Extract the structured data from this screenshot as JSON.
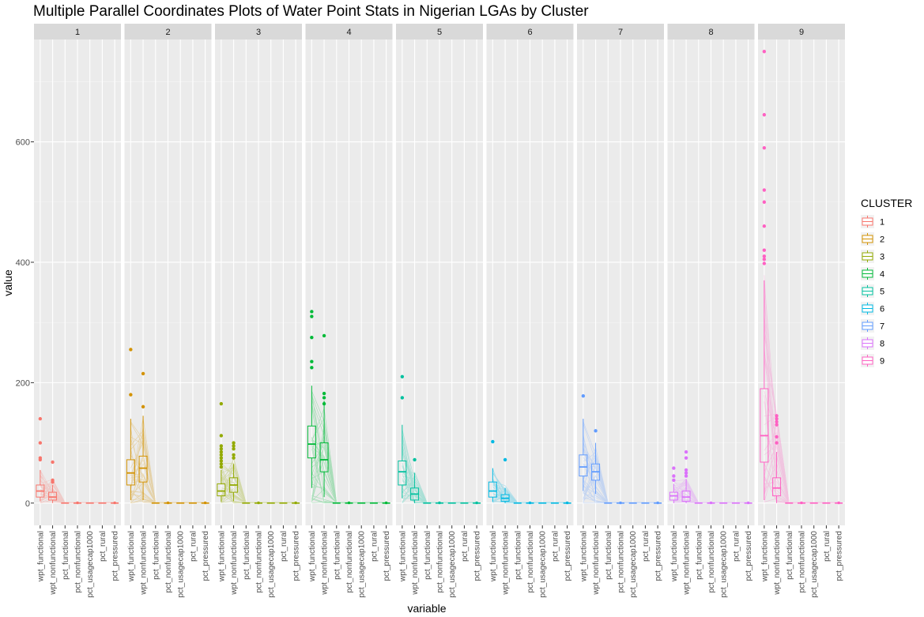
{
  "chart_data": {
    "type": "parallel-coordinates-boxplot",
    "title": "Multiple Parallel Coordinates Plots of Water Point Stats in Nigerian LGAs by Cluster",
    "xlabel": "variable",
    "ylabel": "value",
    "ylim": [
      -37,
      770
    ],
    "yticks": [
      0,
      200,
      400,
      600
    ],
    "grid": true,
    "legend_position": "right",
    "legend_title": "CLUSTER",
    "variables": [
      "wpt_functional",
      "wpt_nonfunctional",
      "pct_functional",
      "pct_nonfunctional",
      "pct_usagecap1000",
      "pct_rural",
      "pct_pressured"
    ],
    "clusters": [
      {
        "name": "1",
        "color": "#F8766D",
        "boxes": [
          {
            "q1": 10,
            "median": 20,
            "q3": 30,
            "lo": 3,
            "hi": 55
          },
          {
            "q1": 5,
            "median": 10,
            "q3": 18,
            "lo": 0,
            "hi": 30
          }
        ],
        "outliers": [
          [
            140,
            100,
            75,
            72
          ],
          [
            68,
            38,
            35
          ]
        ],
        "line_max": [
          55,
          40
        ]
      },
      {
        "name": "2",
        "color": "#D39200",
        "boxes": [
          {
            "q1": 30,
            "median": 50,
            "q3": 72,
            "lo": 5,
            "hi": 140
          },
          {
            "q1": 35,
            "median": 58,
            "q3": 78,
            "lo": 5,
            "hi": 145
          }
        ],
        "outliers": [
          [
            255,
            180
          ],
          [
            215,
            160
          ]
        ],
        "line_max": [
          150,
          150
        ]
      },
      {
        "name": "3",
        "color": "#93AA00",
        "boxes": [
          {
            "q1": 12,
            "median": 20,
            "q3": 32,
            "lo": 2,
            "hi": 55
          },
          {
            "q1": 18,
            "median": 30,
            "q3": 42,
            "lo": 3,
            "hi": 65
          }
        ],
        "outliers": [
          [
            165,
            112,
            95,
            90,
            85,
            80,
            75,
            70,
            65,
            60
          ],
          [
            100,
            95,
            90,
            80,
            75
          ]
        ],
        "line_max": [
          70,
          80
        ]
      },
      {
        "name": "4",
        "color": "#00BA38",
        "boxes": [
          {
            "q1": 75,
            "median": 98,
            "q3": 128,
            "lo": 25,
            "hi": 195
          },
          {
            "q1": 52,
            "median": 72,
            "q3": 100,
            "lo": 10,
            "hi": 170
          }
        ],
        "outliers": [
          [
            318,
            310,
            275,
            235,
            225
          ],
          [
            278,
            182,
            175,
            165
          ]
        ],
        "line_max": [
          200,
          180
        ]
      },
      {
        "name": "5",
        "color": "#00C19F",
        "boxes": [
          {
            "q1": 30,
            "median": 52,
            "q3": 70,
            "lo": 8,
            "hi": 130
          },
          {
            "q1": 5,
            "median": 15,
            "q3": 25,
            "lo": 0,
            "hi": 50
          }
        ],
        "outliers": [
          [
            210,
            175
          ],
          [
            72
          ]
        ],
        "line_max": [
          130,
          60
        ]
      },
      {
        "name": "6",
        "color": "#00B9E3",
        "boxes": [
          {
            "q1": 10,
            "median": 20,
            "q3": 35,
            "lo": 2,
            "hi": 58
          },
          {
            "q1": 3,
            "median": 8,
            "q3": 14,
            "lo": 0,
            "hi": 25
          }
        ],
        "outliers": [
          [
            102
          ],
          [
            72
          ]
        ],
        "line_max": [
          60,
          30
        ]
      },
      {
        "name": "7",
        "color": "#619CFF",
        "boxes": [
          {
            "q1": 45,
            "median": 60,
            "q3": 80,
            "lo": 20,
            "hi": 140
          },
          {
            "q1": 38,
            "median": 52,
            "q3": 65,
            "lo": 15,
            "hi": 100
          }
        ],
        "outliers": [
          [
            178
          ],
          [
            120
          ]
        ],
        "line_max": [
          140,
          100
        ]
      },
      {
        "name": "8",
        "color": "#DB72FB",
        "boxes": [
          {
            "q1": 5,
            "median": 12,
            "q3": 18,
            "lo": 0,
            "hi": 32
          },
          {
            "q1": 3,
            "median": 10,
            "q3": 20,
            "lo": 0,
            "hi": 40
          }
        ],
        "outliers": [
          [
            58,
            45,
            38
          ],
          [
            85,
            75,
            55,
            50,
            45
          ]
        ],
        "line_max": [
          40,
          45
        ]
      },
      {
        "name": "9",
        "color": "#FF61C3",
        "boxes": [
          {
            "q1": 68,
            "median": 112,
            "q3": 190,
            "lo": 5,
            "hi": 370
          },
          {
            "q1": 12,
            "median": 25,
            "q3": 42,
            "lo": 0,
            "hi": 85
          }
        ],
        "outliers": [
          [
            750,
            645,
            590,
            520,
            500,
            460,
            420,
            410,
            405,
            398
          ],
          [
            145,
            140,
            135,
            130,
            110,
            100
          ]
        ],
        "line_max": [
          380,
          150
        ]
      }
    ]
  }
}
